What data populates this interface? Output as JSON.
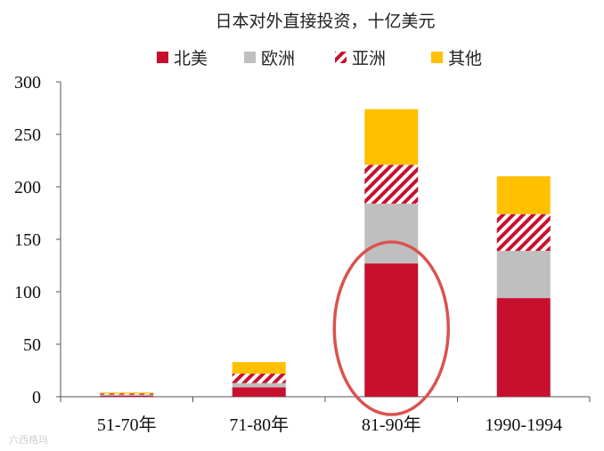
{
  "chart_data": {
    "type": "bar",
    "stacked": true,
    "title": "日本对外直接投资，十亿美元",
    "categories": [
      "51-70年",
      "71-80年",
      "81-90年",
      "1990-1994"
    ],
    "series": [
      {
        "name": "北美",
        "values": [
          1,
          9,
          127,
          94
        ],
        "color": "#C8102E",
        "pattern": "solid"
      },
      {
        "name": "欧洲",
        "values": [
          1,
          4,
          57,
          45
        ],
        "color": "#BFBFBF",
        "pattern": "solid"
      },
      {
        "name": "亚洲",
        "values": [
          1,
          9,
          37,
          35
        ],
        "color": "#C8102E",
        "pattern": "hatched"
      },
      {
        "name": "其他",
        "values": [
          1,
          11,
          53,
          36
        ],
        "color": "#FFC000",
        "pattern": "solid"
      }
    ],
    "yticks": [
      0,
      50,
      100,
      150,
      200,
      250,
      300
    ],
    "ylim": [
      0,
      300
    ],
    "legend_position": "top",
    "grid": false,
    "annotation": {
      "type": "ellipse",
      "target_category": "81-90年",
      "color": "#D9534F"
    }
  },
  "watermark": "六西格玛"
}
